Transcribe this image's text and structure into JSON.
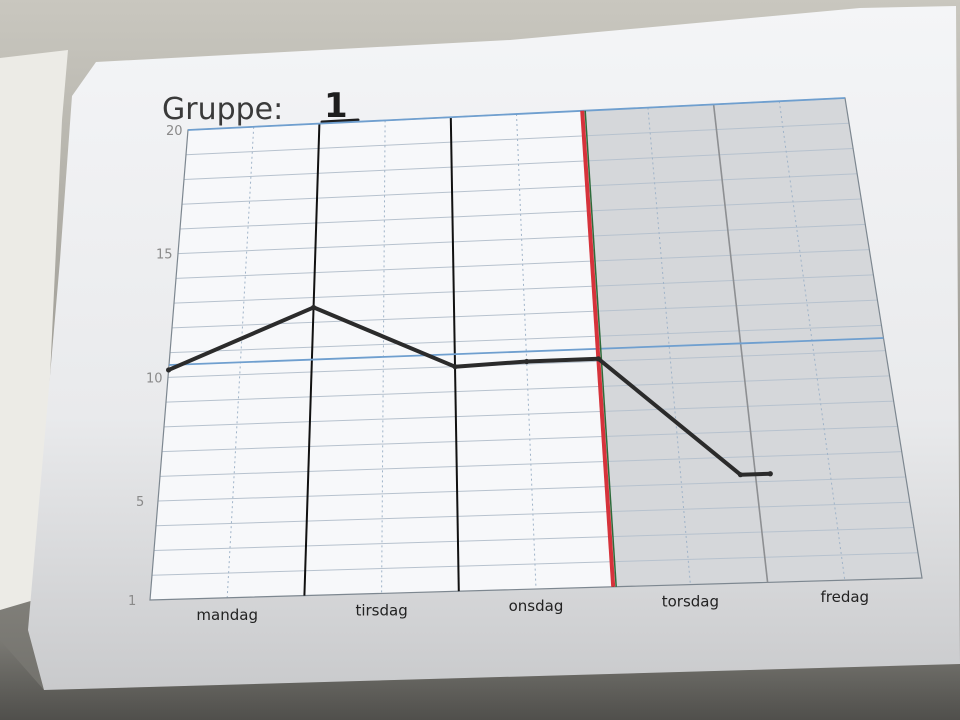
{
  "chart_data": {
    "type": "line",
    "title_label": "Gruppe:",
    "title_number": "1",
    "categories": [
      "mandag",
      "tirsdag",
      "onsdag",
      "torsdag",
      "fredag"
    ],
    "y_ticks": [
      {
        "value": 20,
        "label": "20"
      },
      {
        "value": 15,
        "label": "15"
      },
      {
        "value": 10,
        "label": "10"
      },
      {
        "value": 5,
        "label": "5"
      },
      {
        "value": 1,
        "label": "1"
      }
    ],
    "ylim": [
      1,
      20
    ],
    "reference_lines": [
      20,
      10.5
    ],
    "series": [
      {
        "points": [
          {
            "x": 0.0,
            "y": 10.3
          },
          {
            "x": 1.0,
            "y": 12.6
          },
          {
            "x": 2.0,
            "y": 10.0
          },
          {
            "x": 2.5,
            "y": 10.1
          },
          {
            "x": 3.0,
            "y": 10.1
          },
          {
            "x": 3.9,
            "y": 5.3
          },
          {
            "x": 4.1,
            "y": 5.3
          }
        ]
      }
    ],
    "today_marker_x": 3.0,
    "grid": true,
    "colors": {
      "line": "#2b2b2b",
      "reference": "#6f9fcf",
      "today": "#d6333b",
      "shade": "#cfd1d3",
      "grid": "#b7c2ce"
    }
  }
}
